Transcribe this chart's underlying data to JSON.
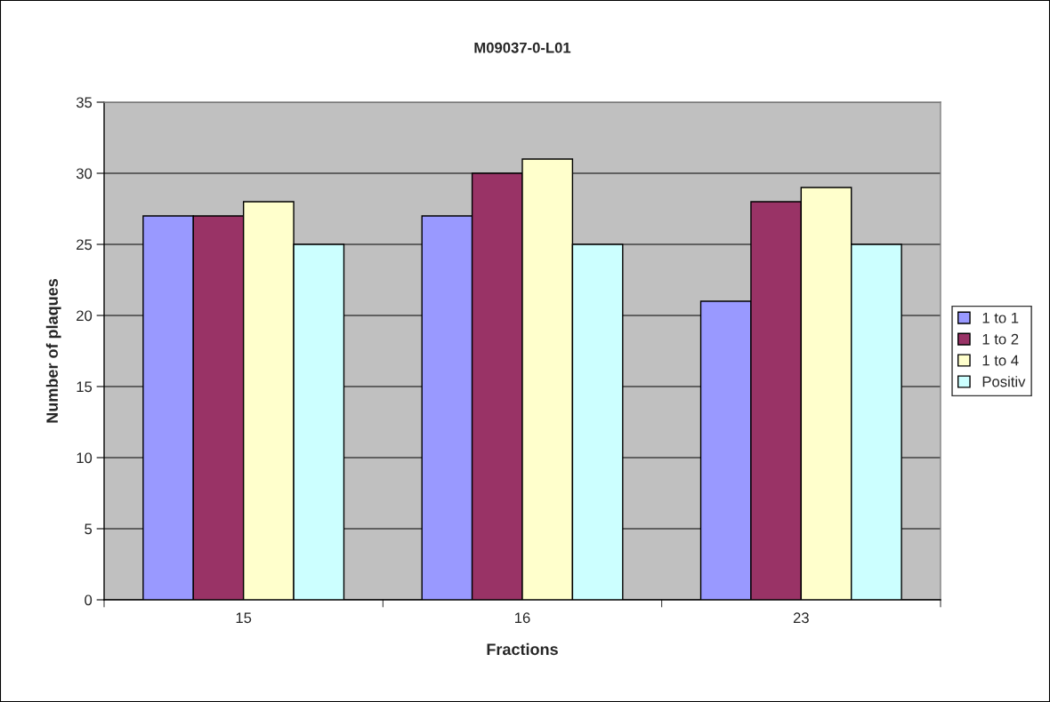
{
  "chart_data": {
    "type": "bar",
    "title": "M09037-0-L01",
    "xlabel": "Fractions",
    "ylabel": "Number of plaques",
    "categories": [
      "15",
      "16",
      "23"
    ],
    "series": [
      {
        "name": "1 to 1",
        "color": "#9999ff",
        "values": [
          27,
          27,
          21
        ]
      },
      {
        "name": "1 to 2",
        "color": "#993366",
        "values": [
          27,
          30,
          28
        ]
      },
      {
        "name": "1 to 4",
        "color": "#ffffcc",
        "values": [
          28,
          31,
          29
        ]
      },
      {
        "name": "Positiv",
        "color": "#ccffff",
        "values": [
          25,
          25,
          25
        ]
      }
    ],
    "ylim": [
      0,
      35
    ],
    "yticks": [
      0,
      5,
      10,
      15,
      20,
      25,
      30,
      35
    ],
    "grid": "y",
    "legend": "right"
  }
}
